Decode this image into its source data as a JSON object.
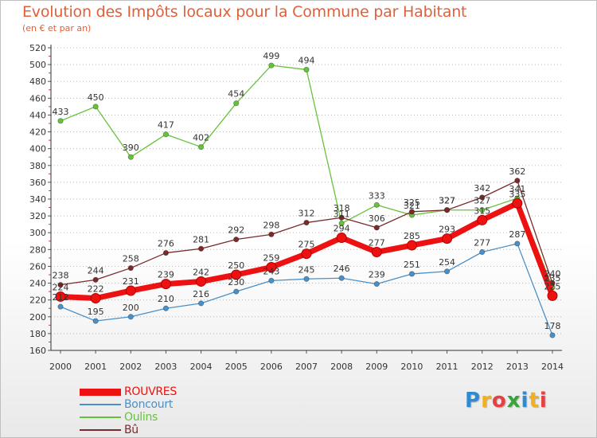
{
  "header": {
    "title": "Evolution des Impôts locaux pour la Commune par Habitant",
    "subtitle": "(en € et par an)"
  },
  "logo": {
    "letters": [
      "P",
      "r",
      "o",
      "x",
      "i",
      "t",
      "i"
    ],
    "colors": [
      "#2e8bd0",
      "#f0b020",
      "#e84040",
      "#3aa33a",
      "#2e8bd0",
      "#f0b020",
      "#e84040"
    ]
  },
  "chart_data": {
    "type": "line",
    "title": "Evolution des Impôts locaux pour la Commune par Habitant",
    "subtitle": "(en € et par an)",
    "x": [
      2000,
      2001,
      2002,
      2003,
      2004,
      2005,
      2006,
      2007,
      2008,
      2009,
      2010,
      2011,
      2012,
      2013,
      2014
    ],
    "ylim": [
      160,
      520
    ],
    "ytick_step": 20,
    "grid": "horizontal-dotted",
    "legend_position": "bottom-left",
    "series": [
      {
        "name": "ROUVRES",
        "color": "#ee1111",
        "emphasis": true,
        "values": [
          224,
          222,
          231,
          239,
          242,
          250,
          259,
          275,
          294,
          277,
          285,
          293,
          315,
          335,
          225
        ],
        "labels": [
          "224",
          "222",
          "231",
          "239",
          "242",
          "250",
          "259",
          "275",
          "294",
          "277",
          "285",
          "293",
          "315",
          "335",
          "225"
        ]
      },
      {
        "name": "Boncourt",
        "color": "#4a90c8",
        "values": [
          212,
          195,
          200,
          210,
          216,
          230,
          243,
          245,
          246,
          239,
          251,
          254,
          277,
          287,
          178
        ],
        "labels": [
          "212",
          "195",
          "200",
          "210",
          "216",
          "230",
          "243",
          "245",
          "246",
          "239",
          "251",
          "254",
          "277",
          "287",
          "178"
        ]
      },
      {
        "name": "Oulins",
        "color": "#66c23a",
        "values": [
          433,
          450,
          390,
          417,
          402,
          454,
          499,
          494,
          311,
          333,
          321,
          327,
          327,
          341,
          235
        ],
        "labels": [
          "433",
          "450",
          "390",
          "417",
          "402",
          "454",
          "499",
          "494",
          "311",
          "333",
          "321",
          "327",
          "327",
          "341",
          "235"
        ]
      },
      {
        "name": "Bû",
        "color": "#7a2a2a",
        "values": [
          238,
          244,
          258,
          276,
          281,
          292,
          298,
          312,
          318,
          306,
          325,
          327,
          342,
          362,
          240
        ],
        "labels": [
          "238",
          "244",
          "258",
          "276",
          "281",
          "292",
          "298",
          "312",
          "318",
          "306",
          "325",
          "327",
          "342",
          "362",
          "240"
        ]
      }
    ]
  }
}
